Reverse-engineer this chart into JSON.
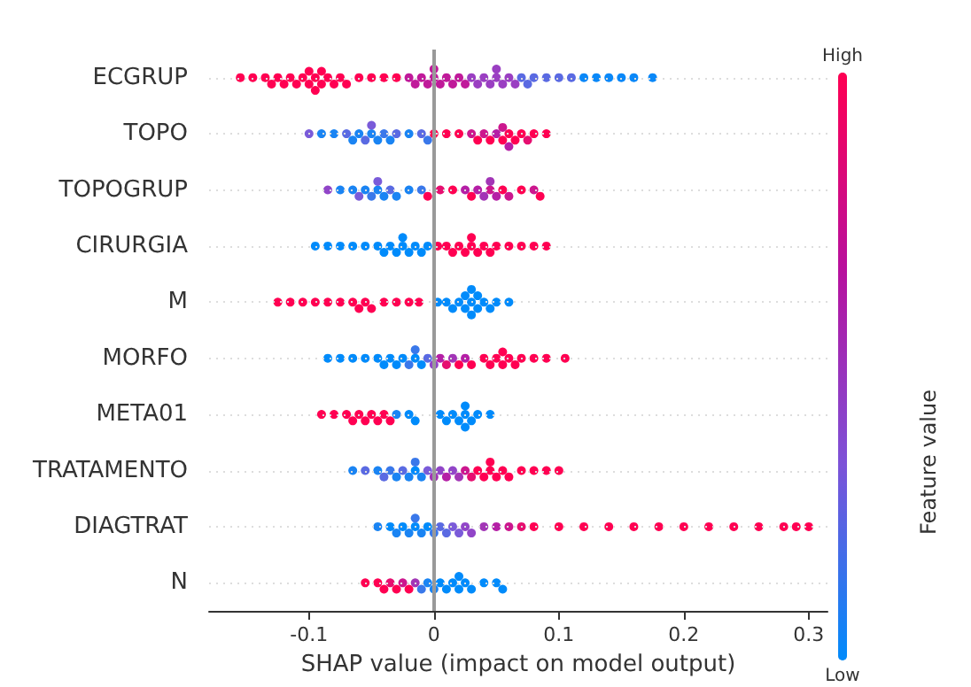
{
  "chart_data": {
    "type": "scatter",
    "orientation": "horizontal",
    "xlabel": "SHAP value (impact on model output)",
    "clabel": "Feature value",
    "annotations": [
      "High",
      "Low"
    ],
    "categories": [
      "ECGRUP",
      "TOPO",
      "TOPOGRUP",
      "CIRURGIA",
      "M",
      "MORFO",
      "META01",
      "TRATAMENTO",
      "DIAGTRAT",
      "N"
    ],
    "xlim": [
      -0.18,
      0.315
    ],
    "xticks": [
      -0.1,
      0,
      0.1,
      0.2,
      0.3
    ],
    "grid": "y",
    "marker": "circle",
    "ref_lines": [
      {
        "axis": "x",
        "value": 0,
        "color": "#999999"
      }
    ],
    "series": [
      {
        "x": [
          "ECGRUP",
          "ECGRUP",
          "ECGRUP",
          "ECGRUP",
          "ECGRUP",
          "ECGRUP",
          "ECGRUP",
          "ECGRUP",
          "ECGRUP",
          "ECGRUP",
          "ECGRUP",
          "ECGRUP",
          "ECGRUP",
          "ECGRUP",
          "ECGRUP",
          "ECGRUP",
          "ECGRUP",
          "ECGRUP",
          "ECGRUP",
          "ECGRUP",
          "ECGRUP",
          "ECGRUP",
          "ECGRUP",
          "ECGRUP",
          "ECGRUP",
          "ECGRUP",
          "ECGRUP",
          "ECGRUP",
          "ECGRUP",
          "ECGRUP",
          "ECGRUP",
          "ECGRUP",
          "ECGRUP",
          "ECGRUP",
          "ECGRUP",
          "ECGRUP",
          "ECGRUP",
          "ECGRUP",
          "ECGRUP",
          "ECGRUP",
          "ECGRUP",
          "ECGRUP",
          "ECGRUP",
          "ECGRUP",
          "ECGRUP",
          "ECGRUP",
          "ECGRUP",
          "ECGRUP",
          "ECGRUP",
          "ECGRUP",
          "ECGRUP",
          "ECGRUP",
          "ECGRUP",
          "ECGRUP",
          "ECGRUP"
        ],
        "values": [
          -0.155,
          -0.145,
          -0.135,
          -0.13,
          -0.125,
          -0.12,
          -0.115,
          -0.11,
          -0.105,
          -0.1,
          -0.1,
          -0.095,
          -0.095,
          -0.09,
          -0.09,
          -0.085,
          -0.08,
          -0.075,
          -0.07,
          -0.06,
          -0.05,
          -0.04,
          -0.03,
          -0.02,
          -0.015,
          -0.01,
          -0.005,
          0,
          0,
          0.005,
          0.01,
          0.015,
          0.02,
          0.025,
          0.03,
          0.035,
          0.04,
          0.045,
          0.05,
          0.05,
          0.055,
          0.06,
          0.065,
          0.07,
          0.075,
          0.08,
          0.09,
          0.1,
          0.11,
          0.12,
          0.13,
          0.14,
          0.15,
          0.16,
          0.175
        ],
        "colors": [
          "#ff0052",
          "#ff0052",
          "#ff0052",
          "#ff0052",
          "#ff0052",
          "#ff0052",
          "#ff0052",
          "#ff0052",
          "#ff0052",
          "#ff0052",
          "#ff0052",
          "#ff0052",
          "#ff0052",
          "#ff0052",
          "#ff0052",
          "#ff0052",
          "#ff0052",
          "#ff0052",
          "#ff0052",
          "#ff0052",
          "#ff0052",
          "#ff0052",
          "#ff0052",
          "#c01a9a",
          "#c01a9a",
          "#c01a9a",
          "#c01a9a",
          "#c01a9a",
          "#c01a9a",
          "#c01a9a",
          "#c01a9a",
          "#c01a9a",
          "#c01a9a",
          "#c01a9a",
          "#9a3fc2",
          "#9a3fc2",
          "#9a3fc2",
          "#9a3fc2",
          "#9a3fc2",
          "#9a3fc2",
          "#9a3fc2",
          "#9a3fc2",
          "#9a3fc2",
          "#5a6ae2",
          "#5a6ae2",
          "#5a6ae2",
          "#5a6ae2",
          "#5a6ae2",
          "#5a6ae2",
          "#0a88f8",
          "#0a88f8",
          "#0a88f8",
          "#0a88f8",
          "#0a88f8",
          "#0a88f8"
        ]
      },
      {
        "x": [
          "TOPO",
          "TOPO",
          "TOPO",
          "TOPO",
          "TOPO",
          "TOPO",
          "TOPO",
          "TOPO",
          "TOPO",
          "TOPO",
          "TOPO",
          "TOPO",
          "TOPO",
          "TOPO",
          "TOPO",
          "TOPO",
          "TOPO",
          "TOPO",
          "TOPO",
          "TOPO",
          "TOPO",
          "TOPO",
          "TOPO",
          "TOPO",
          "TOPO",
          "TOPO",
          "TOPO",
          "TOPO",
          "TOPO",
          "TOPO",
          "TOPO",
          "TOPO",
          "TOPO"
        ],
        "values": [
          -0.1,
          -0.09,
          -0.08,
          -0.07,
          -0.065,
          -0.06,
          -0.055,
          -0.05,
          -0.05,
          -0.045,
          -0.04,
          -0.035,
          -0.03,
          -0.02,
          -0.01,
          -0.005,
          0,
          0.01,
          0.02,
          0.03,
          0.035,
          0.04,
          0.045,
          0.05,
          0.055,
          0.055,
          0.06,
          0.06,
          0.065,
          0.07,
          0.075,
          0.08,
          0.09
        ],
        "colors": [
          "#7a5bd9",
          "#1a84f3",
          "#1a84f3",
          "#5a6ae2",
          "#1a84f3",
          "#1a84f3",
          "#5a6ae2",
          "#1a84f3",
          "#7a5bd9",
          "#1a84f3",
          "#3a78ea",
          "#1a84f3",
          "#5a6ae2",
          "#1a84f3",
          "#5a6ae2",
          "#3a78ea",
          "#ff0052",
          "#ff0052",
          "#ff0052",
          "#cc178e",
          "#ff0052",
          "#cc178e",
          "#ff0052",
          "#b51fa6",
          "#ff0052",
          "#cc178e",
          "#ff0052",
          "#b51fa6",
          "#ff0052",
          "#ff0052",
          "#e60f70",
          "#ff0052",
          "#ff0052"
        ]
      },
      {
        "x": [
          "TOPOGRUP",
          "TOPOGRUP",
          "TOPOGRUP",
          "TOPOGRUP",
          "TOPOGRUP",
          "TOPOGRUP",
          "TOPOGRUP",
          "TOPOGRUP",
          "TOPOGRUP",
          "TOPOGRUP",
          "TOPOGRUP",
          "TOPOGRUP",
          "TOPOGRUP",
          "TOPOGRUP",
          "TOPOGRUP",
          "TOPOGRUP",
          "TOPOGRUP",
          "TOPOGRUP",
          "TOPOGRUP",
          "TOPOGRUP",
          "TOPOGRUP",
          "TOPOGRUP",
          "TOPOGRUP",
          "TOPOGRUP",
          "TOPOGRUP",
          "TOPOGRUP",
          "TOPOGRUP",
          "TOPOGRUP"
        ],
        "values": [
          -0.085,
          -0.075,
          -0.065,
          -0.06,
          -0.055,
          -0.05,
          -0.045,
          -0.045,
          -0.04,
          -0.035,
          -0.03,
          -0.02,
          -0.01,
          -0.005,
          0.005,
          0.015,
          0.025,
          0.03,
          0.035,
          0.04,
          0.045,
          0.045,
          0.05,
          0.055,
          0.06,
          0.07,
          0.08,
          0.085
        ],
        "colors": [
          "#9145c8",
          "#1a84f3",
          "#1a84f3",
          "#7a5bd9",
          "#1a84f3",
          "#3a78ea",
          "#1a84f3",
          "#7a5bd9",
          "#1a84f3",
          "#5a6ae2",
          "#1a84f3",
          "#1a84f3",
          "#3a78ea",
          "#ff0052",
          "#e60f70",
          "#ff0052",
          "#b51fa6",
          "#ff0052",
          "#b51fa6",
          "#a235b6",
          "#cc178e",
          "#a235b6",
          "#b51fa6",
          "#ff0052",
          "#cc178e",
          "#ff0052",
          "#cc178e",
          "#ff0052"
        ]
      },
      {
        "x": [
          "CIRURGIA",
          "CIRURGIA",
          "CIRURGIA",
          "CIRURGIA",
          "CIRURGIA",
          "CIRURGIA",
          "CIRURGIA",
          "CIRURGIA",
          "CIRURGIA",
          "CIRURGIA",
          "CIRURGIA",
          "CIRURGIA",
          "CIRURGIA",
          "CIRURGIA",
          "CIRURGIA",
          "CIRURGIA",
          "CIRURGIA",
          "CIRURGIA",
          "CIRURGIA",
          "CIRURGIA",
          "CIRURGIA",
          "CIRURGIA",
          "CIRURGIA",
          "CIRURGIA",
          "CIRURGIA",
          "CIRURGIA",
          "CIRURGIA",
          "CIRURGIA",
          "CIRURGIA",
          "CIRURGIA"
        ],
        "values": [
          -0.095,
          -0.085,
          -0.075,
          -0.065,
          -0.055,
          -0.045,
          -0.04,
          -0.035,
          -0.03,
          -0.025,
          -0.025,
          -0.02,
          -0.015,
          -0.01,
          -0.005,
          0.003,
          0.01,
          0.015,
          0.02,
          0.025,
          0.03,
          0.03,
          0.035,
          0.04,
          0.045,
          0.05,
          0.06,
          0.07,
          0.08,
          0.09
        ],
        "colors": [
          "#008bfb",
          "#008bfb",
          "#008bfb",
          "#008bfb",
          "#008bfb",
          "#008bfb",
          "#008bfb",
          "#008bfb",
          "#008bfb",
          "#008bfb",
          "#008bfb",
          "#008bfb",
          "#008bfb",
          "#008bfb",
          "#008bfb",
          "#ff0052",
          "#ff0052",
          "#ff0052",
          "#ff0052",
          "#ff0052",
          "#ff0052",
          "#ff0052",
          "#ff0052",
          "#ff0052",
          "#ff0052",
          "#ff0052",
          "#ff0052",
          "#ff0052",
          "#ff0052",
          "#ff0052"
        ]
      },
      {
        "x": [
          "M",
          "M",
          "M",
          "M",
          "M",
          "M",
          "M",
          "M",
          "M",
          "M",
          "M",
          "M",
          "M",
          "M",
          "M",
          "M",
          "M",
          "M",
          "M",
          "M",
          "M",
          "M",
          "M",
          "M",
          "M",
          "M",
          "M",
          "M",
          "M"
        ],
        "values": [
          -0.125,
          -0.115,
          -0.105,
          -0.095,
          -0.085,
          -0.075,
          -0.065,
          -0.06,
          -0.055,
          -0.05,
          -0.04,
          -0.03,
          -0.02,
          -0.012,
          0.003,
          0.01,
          0.015,
          0.02,
          0.025,
          0.025,
          0.03,
          0.03,
          0.03,
          0.035,
          0.035,
          0.04,
          0.045,
          0.05,
          0.06
        ],
        "colors": [
          "#ff0052",
          "#ff0052",
          "#ff0052",
          "#ff0052",
          "#ff0052",
          "#ff0052",
          "#ff0052",
          "#ff0052",
          "#ff0052",
          "#ff0052",
          "#ff0052",
          "#ff0052",
          "#ff0052",
          "#ff0052",
          "#008bfb",
          "#008bfb",
          "#008bfb",
          "#008bfb",
          "#008bfb",
          "#008bfb",
          "#008bfb",
          "#008bfb",
          "#008bfb",
          "#008bfb",
          "#008bfb",
          "#008bfb",
          "#008bfb",
          "#008bfb",
          "#008bfb"
        ]
      },
      {
        "x": [
          "MORFO",
          "MORFO",
          "MORFO",
          "MORFO",
          "MORFO",
          "MORFO",
          "MORFO",
          "MORFO",
          "MORFO",
          "MORFO",
          "MORFO",
          "MORFO",
          "MORFO",
          "MORFO",
          "MORFO",
          "MORFO",
          "MORFO",
          "MORFO",
          "MORFO",
          "MORFO",
          "MORFO",
          "MORFO",
          "MORFO",
          "MORFO",
          "MORFO",
          "MORFO",
          "MORFO",
          "MORFO",
          "MORFO",
          "MORFO",
          "MORFO",
          "MORFO"
        ],
        "values": [
          -0.085,
          -0.075,
          -0.065,
          -0.055,
          -0.045,
          -0.04,
          -0.035,
          -0.03,
          -0.025,
          -0.02,
          -0.015,
          -0.015,
          -0.01,
          -0.005,
          0,
          0.005,
          0.01,
          0.015,
          0.02,
          0.025,
          0.03,
          0.04,
          0.045,
          0.05,
          0.055,
          0.055,
          0.06,
          0.065,
          0.07,
          0.08,
          0.09,
          0.105
        ],
        "colors": [
          "#008bfb",
          "#008bfb",
          "#008bfb",
          "#008bfb",
          "#008bfb",
          "#008bfb",
          "#008bfb",
          "#008bfb",
          "#008bfb",
          "#3a78ea",
          "#008bfb",
          "#3a78ea",
          "#008bfb",
          "#5a6ae2",
          "#9145c8",
          "#b51fa6",
          "#e60f70",
          "#a235b6",
          "#ff0052",
          "#b51fa6",
          "#ff0052",
          "#ff0052",
          "#ff0052",
          "#ff0052",
          "#ff0052",
          "#ff0052",
          "#ff0052",
          "#ff0052",
          "#ff0052",
          "#ff0052",
          "#ff0052",
          "#ff0052"
        ]
      },
      {
        "x": [
          "META01",
          "META01",
          "META01",
          "META01",
          "META01",
          "META01",
          "META01",
          "META01",
          "META01",
          "META01",
          "META01",
          "META01",
          "META01",
          "META01",
          "META01",
          "META01",
          "META01",
          "META01",
          "META01",
          "META01",
          "META01",
          "META01",
          "META01"
        ],
        "values": [
          -0.09,
          -0.08,
          -0.07,
          -0.065,
          -0.06,
          -0.055,
          -0.05,
          -0.045,
          -0.04,
          -0.035,
          -0.03,
          -0.02,
          -0.015,
          0.005,
          0.01,
          0.015,
          0.02,
          0.025,
          0.025,
          0.025,
          0.03,
          0.035,
          0.045
        ],
        "colors": [
          "#ff0052",
          "#ff0052",
          "#ff0052",
          "#ff0052",
          "#ff0052",
          "#ff0052",
          "#ff0052",
          "#ff0052",
          "#ff0052",
          "#ff0052",
          "#1a84f3",
          "#008bfb",
          "#008bfb",
          "#008bfb",
          "#008bfb",
          "#008bfb",
          "#008bfb",
          "#008bfb",
          "#008bfb",
          "#008bfb",
          "#008bfb",
          "#008bfb",
          "#008bfb"
        ]
      },
      {
        "x": [
          "TRATAMENTO",
          "TRATAMENTO",
          "TRATAMENTO",
          "TRATAMENTO",
          "TRATAMENTO",
          "TRATAMENTO",
          "TRATAMENTO",
          "TRATAMENTO",
          "TRATAMENTO",
          "TRATAMENTO",
          "TRATAMENTO",
          "TRATAMENTO",
          "TRATAMENTO",
          "TRATAMENTO",
          "TRATAMENTO",
          "TRATAMENTO",
          "TRATAMENTO",
          "TRATAMENTO",
          "TRATAMENTO",
          "TRATAMENTO",
          "TRATAMENTO",
          "TRATAMENTO",
          "TRATAMENTO",
          "TRATAMENTO",
          "TRATAMENTO",
          "TRATAMENTO",
          "TRATAMENTO",
          "TRATAMENTO",
          "TRATAMENTO",
          "TRATAMENTO"
        ],
        "values": [
          -0.065,
          -0.055,
          -0.045,
          -0.04,
          -0.035,
          -0.03,
          -0.025,
          -0.02,
          -0.015,
          -0.015,
          -0.01,
          -0.005,
          0,
          0.005,
          0.01,
          0.015,
          0.02,
          0.025,
          0.03,
          0.035,
          0.04,
          0.045,
          0.045,
          0.05,
          0.055,
          0.06,
          0.07,
          0.08,
          0.09,
          0.1
        ],
        "colors": [
          "#1a84f3",
          "#5a6ae2",
          "#1a84f3",
          "#5a6ae2",
          "#3a78ea",
          "#1a84f3",
          "#5a6ae2",
          "#1a84f3",
          "#008bfb",
          "#3a78ea",
          "#1a84f3",
          "#7a5bd9",
          "#a235b6",
          "#9145c8",
          "#b51fa6",
          "#9145c8",
          "#a235b6",
          "#cc178e",
          "#e60f70",
          "#ff0052",
          "#ff0052",
          "#ff0052",
          "#ff0052",
          "#ff0052",
          "#ff0052",
          "#ff0052",
          "#ff0052",
          "#ff0052",
          "#ff0052",
          "#ff0052"
        ]
      },
      {
        "x": [
          "DIAGTRAT",
          "DIAGTRAT",
          "DIAGTRAT",
          "DIAGTRAT",
          "DIAGTRAT",
          "DIAGTRAT",
          "DIAGTRAT",
          "DIAGTRAT",
          "DIAGTRAT",
          "DIAGTRAT",
          "DIAGTRAT",
          "DIAGTRAT",
          "DIAGTRAT",
          "DIAGTRAT",
          "DIAGTRAT",
          "DIAGTRAT",
          "DIAGTRAT",
          "DIAGTRAT",
          "DIAGTRAT",
          "DIAGTRAT",
          "DIAGTRAT",
          "DIAGTRAT",
          "DIAGTRAT",
          "DIAGTRAT",
          "DIAGTRAT",
          "DIAGTRAT",
          "DIAGTRAT",
          "DIAGTRAT",
          "DIAGTRAT",
          "DIAGTRAT",
          "DIAGTRAT",
          "DIAGTRAT",
          "DIAGTRAT"
        ],
        "values": [
          -0.045,
          -0.035,
          -0.03,
          -0.025,
          -0.02,
          -0.015,
          -0.015,
          -0.01,
          -0.005,
          0,
          0.005,
          0.01,
          0.015,
          0.02,
          0.025,
          0.03,
          0.04,
          0.05,
          0.06,
          0.07,
          0.08,
          0.1,
          0.12,
          0.14,
          0.16,
          0.18,
          0.2,
          0.22,
          0.24,
          0.26,
          0.28,
          0.29,
          0.3
        ],
        "colors": [
          "#1a84f3",
          "#008bfb",
          "#1a84f3",
          "#008bfb",
          "#1a84f3",
          "#008bfb",
          "#3a78ea",
          "#1a84f3",
          "#008bfb",
          "#3a78ea",
          "#5a6ae2",
          "#5a6ae2",
          "#7a5bd9",
          "#7a5bd9",
          "#9145c8",
          "#9145c8",
          "#a235b6",
          "#b51fa6",
          "#cc178e",
          "#e60f70",
          "#ff0052",
          "#ff0052",
          "#ff0052",
          "#ff0052",
          "#ff0052",
          "#ff0052",
          "#ff0052",
          "#ff0052",
          "#ff0052",
          "#ff0052",
          "#ff0052",
          "#ff0052",
          "#ff0052"
        ]
      },
      {
        "x": [
          "N",
          "N",
          "N",
          "N",
          "N",
          "N",
          "N",
          "N",
          "N",
          "N",
          "N",
          "N",
          "N",
          "N",
          "N",
          "N",
          "N",
          "N",
          "N",
          "N",
          "N"
        ],
        "values": [
          -0.055,
          -0.045,
          -0.04,
          -0.035,
          -0.03,
          -0.025,
          -0.02,
          -0.015,
          -0.01,
          -0.005,
          0,
          0.005,
          0.01,
          0.015,
          0.02,
          0.02,
          0.025,
          0.03,
          0.04,
          0.05,
          0.055
        ],
        "colors": [
          "#ff0052",
          "#ff0052",
          "#ff0052",
          "#e60f70",
          "#ff0052",
          "#cc178e",
          "#ff0052",
          "#a235b6",
          "#3a78ea",
          "#1a84f3",
          "#1a84f3",
          "#008bfb",
          "#008bfb",
          "#008bfb",
          "#008bfb",
          "#008bfb",
          "#008bfb",
          "#008bfb",
          "#008bfb",
          "#008bfb",
          "#008bfb"
        ]
      }
    ]
  }
}
